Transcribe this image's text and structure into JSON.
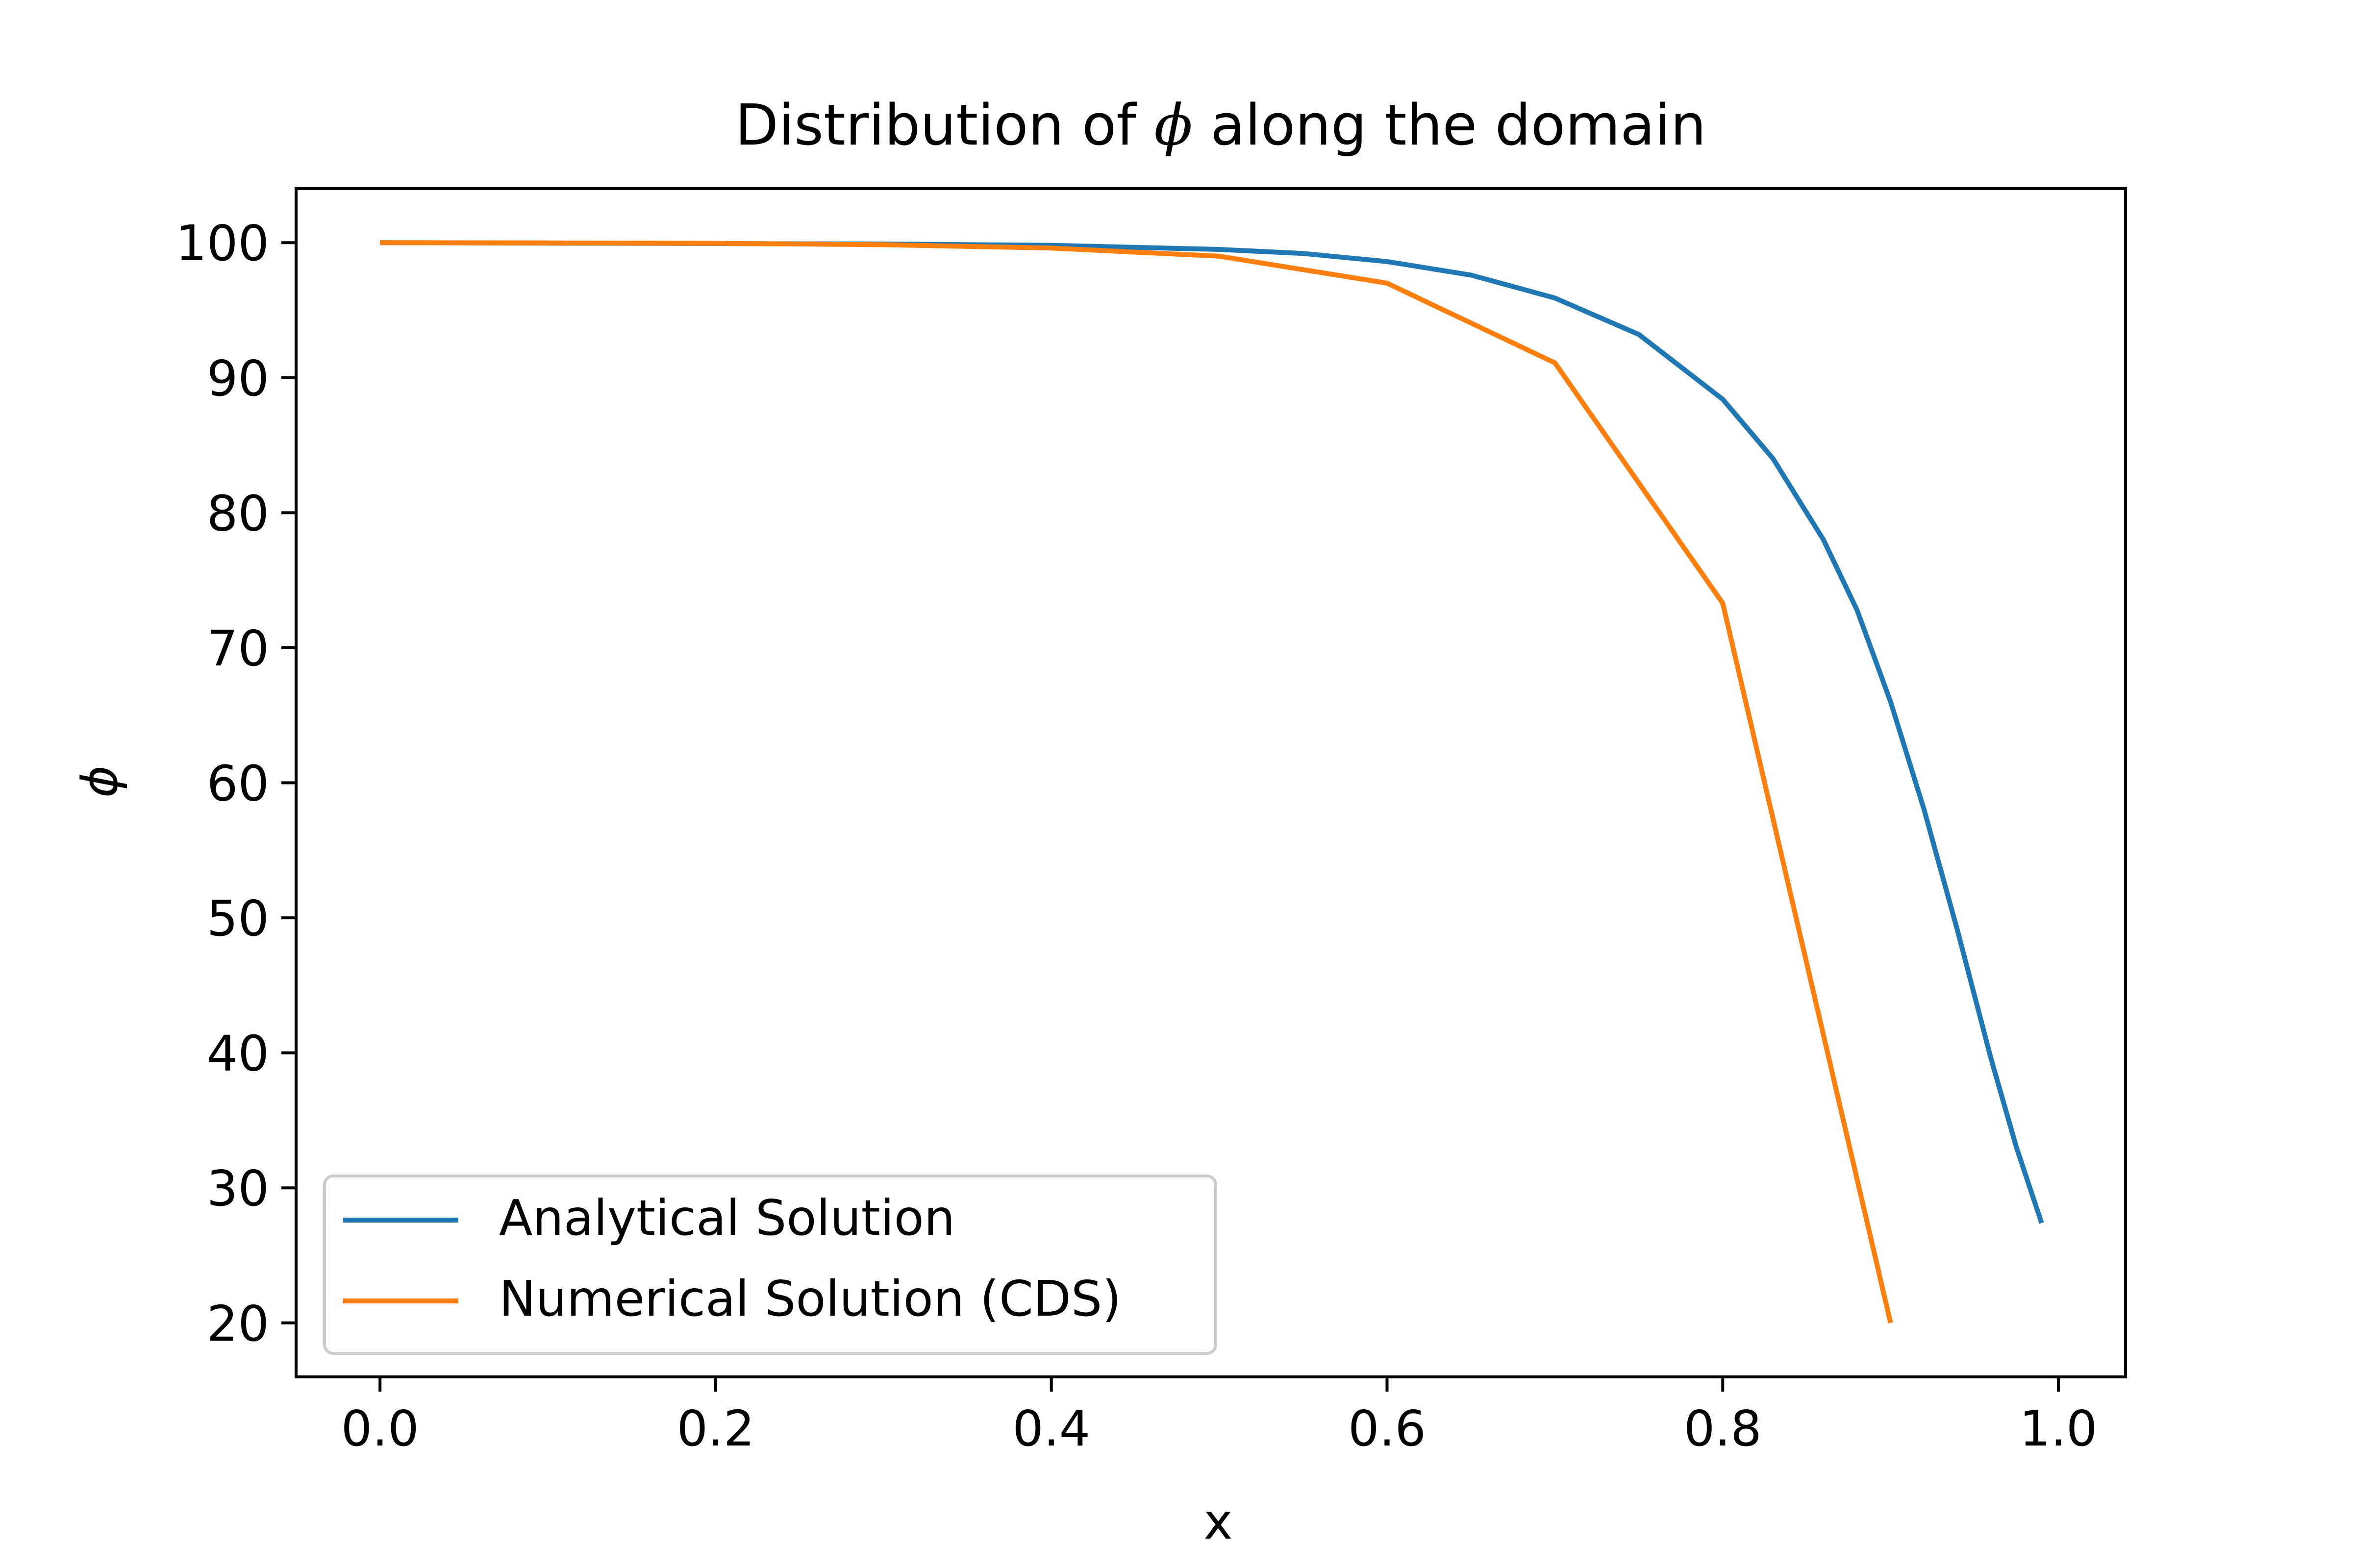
{
  "chart_data": {
    "type": "line",
    "title": "Distribution of ϕ along the domain",
    "title_parts": {
      "before": "Distribution of ",
      "symbol": "ϕ",
      "after": " along the domain"
    },
    "xlabel": "x",
    "ylabel": "ϕ",
    "xlim": [
      -0.05,
      1.04
    ],
    "ylim": [
      16,
      104
    ],
    "x_ticks": [
      0.0,
      0.2,
      0.4,
      0.6,
      0.8,
      1.0
    ],
    "x_tick_labels": [
      "0.0",
      "0.2",
      "0.4",
      "0.6",
      "0.8",
      "1.0"
    ],
    "y_ticks": [
      20,
      30,
      40,
      50,
      60,
      70,
      80,
      90,
      100
    ],
    "y_tick_labels": [
      "20",
      "30",
      "40",
      "50",
      "60",
      "70",
      "80",
      "90",
      "100"
    ],
    "grid": false,
    "legend_position": "lower-left",
    "series": [
      {
        "name": "Analytical Solution",
        "color": "#1f77b4",
        "x": [
          0.0,
          0.3,
          0.4,
          0.5,
          0.55,
          0.6,
          0.65,
          0.7,
          0.75,
          0.8,
          0.83,
          0.86,
          0.88,
          0.9,
          0.92,
          0.94,
          0.96,
          0.975,
          0.99
        ],
        "y": [
          100.0,
          99.9,
          99.8,
          99.5,
          99.2,
          98.6,
          97.6,
          95.9,
          93.2,
          88.4,
          84.0,
          78.0,
          72.8,
          66.0,
          58.0,
          49.0,
          39.5,
          33.0,
          27.4
        ]
      },
      {
        "name": "Numerical Solution (CDS)",
        "color": "#ff7f0e",
        "x": [
          0.0,
          0.1,
          0.2,
          0.3,
          0.4,
          0.5,
          0.6,
          0.7,
          0.8,
          0.9
        ],
        "y": [
          100.0,
          99.98,
          99.95,
          99.85,
          99.6,
          99.0,
          97.0,
          91.1,
          73.3,
          20.0
        ]
      }
    ]
  }
}
